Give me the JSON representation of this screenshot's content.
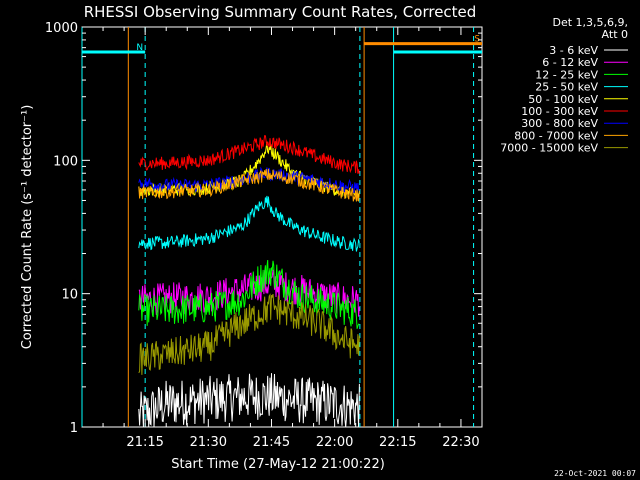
{
  "chart_data": {
    "type": "line",
    "title": "RHESSI Observing Summary Count Rates, Corrected",
    "xlabel": "Start Time (27-May-12 21:00:22)",
    "ylabel": "Corrected Count Rate (s⁻¹ detector⁻¹)",
    "yscale": "log",
    "ylim": [
      1,
      1000
    ],
    "xlim_minutes": [
      0,
      81
    ],
    "x_ticks": [
      {
        "t": 15,
        "label": "21:15"
      },
      {
        "t": 30,
        "label": "21:30"
      },
      {
        "t": 45,
        "label": "21:45"
      },
      {
        "t": 60,
        "label": "22:00"
      },
      {
        "t": 75,
        "label": "22:15"
      },
      {
        "t": 90,
        "label": "22:30"
      }
    ],
    "y_ticks": [
      {
        "v": 1,
        "label": "1"
      },
      {
        "v": 10,
        "label": "10"
      },
      {
        "v": 100,
        "label": "100"
      },
      {
        "v": 1000,
        "label": "1000"
      }
    ],
    "legend_header": [
      "Det 1,3,5,6,9,",
      "Att 0"
    ],
    "legend_position": "right",
    "series": [
      {
        "name": "3 - 6 keV",
        "color": "#ffffff",
        "points": [
          [
            13.5,
            1.2
          ],
          [
            20,
            1.5
          ],
          [
            30,
            1.6
          ],
          [
            40,
            1.7
          ],
          [
            45,
            1.7
          ],
          [
            50,
            1.6
          ],
          [
            60,
            1.5
          ],
          [
            66,
            1.4
          ]
        ]
      },
      {
        "name": "6 - 12 keV",
        "color": "#ff00ff",
        "points": [
          [
            13.5,
            9
          ],
          [
            20,
            9.2
          ],
          [
            30,
            9.5
          ],
          [
            40,
            11
          ],
          [
            45,
            12
          ],
          [
            50,
            11
          ],
          [
            60,
            9.3
          ],
          [
            66,
            8.8
          ]
        ]
      },
      {
        "name": "12 - 25 keV",
        "color": "#00ff00",
        "points": [
          [
            13.5,
            7.5
          ],
          [
            20,
            7.5
          ],
          [
            30,
            7.8
          ],
          [
            38,
            9
          ],
          [
            42,
            13
          ],
          [
            45,
            15
          ],
          [
            48,
            12
          ],
          [
            52,
            9.5
          ],
          [
            60,
            8
          ],
          [
            66,
            7
          ]
        ]
      },
      {
        "name": "25 - 50 keV",
        "color": "#00ffff",
        "points": [
          [
            13.5,
            24
          ],
          [
            20,
            24
          ],
          [
            30,
            26
          ],
          [
            38,
            32
          ],
          [
            42,
            45
          ],
          [
            44,
            50
          ],
          [
            46,
            40
          ],
          [
            50,
            32
          ],
          [
            56,
            27
          ],
          [
            62,
            24
          ],
          [
            66,
            23
          ]
        ]
      },
      {
        "name": "50 - 100 keV",
        "color": "#ffff00",
        "points": [
          [
            13.5,
            60
          ],
          [
            20,
            60
          ],
          [
            30,
            62
          ],
          [
            38,
            70
          ],
          [
            42,
            100
          ],
          [
            44,
            125
          ],
          [
            46,
            110
          ],
          [
            50,
            80
          ],
          [
            56,
            67
          ],
          [
            62,
            58
          ],
          [
            66,
            55
          ]
        ]
      },
      {
        "name": "100 - 300 keV",
        "color": "#ff0000",
        "points": [
          [
            13.5,
            95
          ],
          [
            20,
            95
          ],
          [
            30,
            100
          ],
          [
            38,
            120
          ],
          [
            44,
            140
          ],
          [
            50,
            125
          ],
          [
            56,
            105
          ],
          [
            62,
            92
          ],
          [
            66,
            88
          ]
        ]
      },
      {
        "name": "300 - 800 keV",
        "color": "#0000ff",
        "points": [
          [
            13.5,
            68
          ],
          [
            20,
            65
          ],
          [
            30,
            65
          ],
          [
            38,
            72
          ],
          [
            44,
            80
          ],
          [
            50,
            76
          ],
          [
            56,
            70
          ],
          [
            62,
            64
          ],
          [
            66,
            62
          ]
        ]
      },
      {
        "name": "800 - 7000 keV",
        "color": "#ffa500",
        "points": [
          [
            13.5,
            57
          ],
          [
            20,
            58
          ],
          [
            30,
            60
          ],
          [
            38,
            70
          ],
          [
            44,
            78
          ],
          [
            50,
            73
          ],
          [
            56,
            64
          ],
          [
            62,
            57
          ],
          [
            66,
            54
          ]
        ]
      },
      {
        "name": "7000 - 15000 keV",
        "color": "#999900",
        "points": [
          [
            13.5,
            3.2
          ],
          [
            20,
            3.5
          ],
          [
            30,
            4
          ],
          [
            38,
            6
          ],
          [
            42,
            7
          ],
          [
            45,
            8
          ],
          [
            50,
            7
          ],
          [
            56,
            6
          ],
          [
            62,
            4.5
          ],
          [
            66,
            4
          ]
        ]
      }
    ],
    "state_bars": [
      {
        "color": "#00ffff",
        "level": 650,
        "from": 0,
        "to": 15,
        "label": "N"
      },
      {
        "color": "#00ffff",
        "level": 650,
        "from": 74,
        "to": 95,
        "label": ""
      },
      {
        "color": "#ff8c00",
        "level": 750,
        "from": 67,
        "to": 95,
        "label": "S"
      }
    ],
    "state_lines": [
      {
        "color": "#00ffff",
        "at": 0,
        "dashed": false
      },
      {
        "color": "#00ffff",
        "at": 15,
        "dashed": true
      },
      {
        "color": "#ff8c00",
        "at": 11,
        "dashed": false
      },
      {
        "color": "#ff8c00",
        "at": 67,
        "dashed": false
      },
      {
        "color": "#00ffff",
        "at": 66,
        "dashed": true
      },
      {
        "color": "#00ffff",
        "at": 74,
        "dashed": false
      },
      {
        "color": "#00ffff",
        "at": 93,
        "dashed": true
      }
    ]
  },
  "footer_date": "22-Oct-2021 00:07"
}
